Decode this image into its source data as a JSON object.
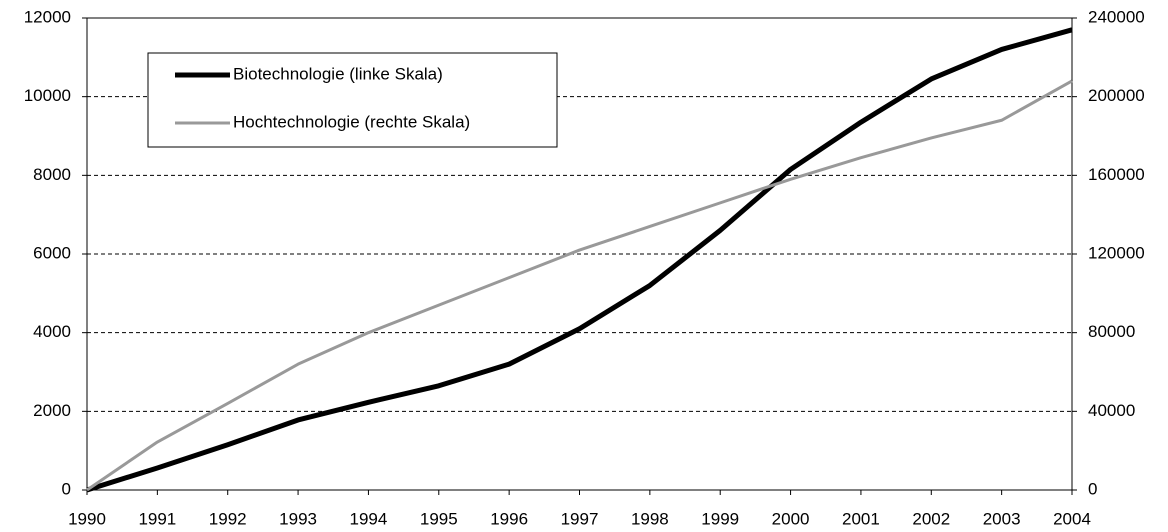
{
  "chart_data": {
    "type": "line",
    "x": [
      1990,
      1991,
      1992,
      1993,
      1994,
      1995,
      1996,
      1997,
      1998,
      1999,
      2000,
      2001,
      2002,
      2003,
      2004
    ],
    "xlim": [
      1990,
      2004
    ],
    "xticks": [
      1990,
      1991,
      1992,
      1993,
      1994,
      1995,
      1996,
      1997,
      1998,
      1999,
      2000,
      2001,
      2002,
      2003,
      2004
    ],
    "ylim": [
      0,
      12000
    ],
    "yticks": [
      0,
      2000,
      4000,
      6000,
      8000,
      10000,
      12000
    ],
    "y2lim": [
      0,
      240000
    ],
    "y2ticks": [
      0,
      40000,
      80000,
      120000,
      160000,
      200000,
      240000
    ],
    "grid": true,
    "legend": "upper left",
    "series": [
      {
        "name": "Biotechnologie (linke Skala)",
        "color": "#000000",
        "width": 5,
        "values": [
          0,
          560,
          1150,
          1780,
          2230,
          2650,
          3200,
          4100,
          5200,
          6600,
          8150,
          9350,
          10450,
          11200,
          11700
        ]
      },
      {
        "name": "Hochtechnologie (rechte Skala)",
        "color": "#999999",
        "width": 3,
        "axis": "y2",
        "values": [
          0,
          24400,
          44000,
          64000,
          80000,
          94000,
          108000,
          122000,
          134000,
          146000,
          158000,
          169000,
          179000,
          188000,
          208000
        ]
      }
    ]
  }
}
